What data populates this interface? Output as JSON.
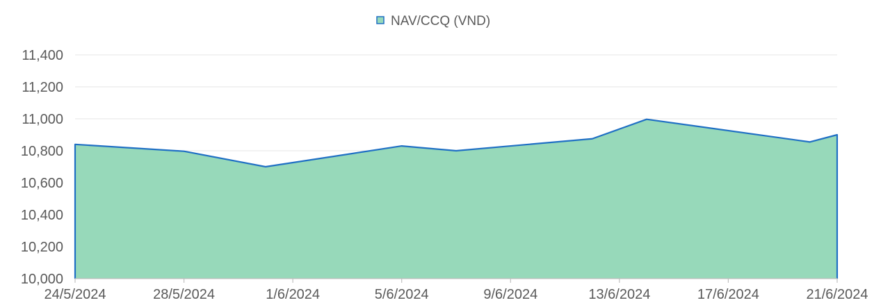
{
  "chart_data": {
    "type": "area",
    "legend": {
      "label": "NAV/CCQ (VND)",
      "position": "top-center"
    },
    "x": [
      "24/5/2024",
      "28/5/2024",
      "31/5/2024",
      "5/6/2024",
      "7/6/2024",
      "12/6/2024",
      "14/6/2024",
      "20/6/2024",
      "21/6/2024"
    ],
    "x_days": [
      0,
      4,
      7,
      12,
      14,
      19,
      21,
      27,
      28
    ],
    "x_tick_labels": [
      "24/5/2024",
      "28/5/2024",
      "1/6/2024",
      "5/6/2024",
      "9/6/2024",
      "13/6/2024",
      "17/6/2024",
      "21/6/2024"
    ],
    "x_tick_days": [
      0,
      4,
      8,
      12,
      16,
      20,
      24,
      28
    ],
    "series": [
      {
        "name": "NAV/CCQ (VND)",
        "values": [
          10840,
          10797,
          10700,
          10830,
          10800,
          10875,
          10997,
          10855,
          10900
        ]
      }
    ],
    "y_ticks": [
      "10,000",
      "10,200",
      "10,400",
      "10,600",
      "10,800",
      "11,000",
      "11,200",
      "11,400"
    ],
    "ylim": [
      10000,
      11400
    ],
    "grid": true,
    "colors": {
      "fill": "#97D9BA",
      "line": "#1F6FC4",
      "grid": "#E6E6E6",
      "text": "#595959",
      "axis": "#BFBFBF"
    }
  }
}
